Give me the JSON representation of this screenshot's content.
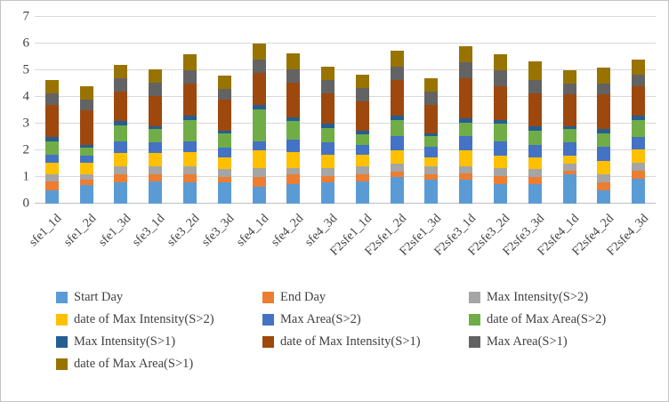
{
  "chart_data": {
    "type": "bar",
    "stacked": true,
    "title": "",
    "xlabel": "",
    "ylabel": "",
    "ylim": [
      0,
      7
    ],
    "yticks": [
      0,
      1,
      2,
      3,
      4,
      5,
      6,
      7
    ],
    "grid": true,
    "legend_position": "bottom",
    "categories": [
      "sfe1_1d",
      "sfe1_2d",
      "sfe1_3d",
      "sfe3_1d",
      "sfe3_2d",
      "sfe3_3d",
      "sfe4_1d",
      "sfe4_2d",
      "sfe4_3d",
      "F2sfe1_1d",
      "F2sfe1_2d",
      "F2sfe1_3d",
      "F2sfe3_1d",
      "F2sfe3_2d",
      "F2sfe3_3d",
      "F2sfe4_1d",
      "F2sfe4_2d",
      "F2sfe4_3d"
    ],
    "series": [
      {
        "name": "Start Day",
        "color": "#5B9BD5",
        "values": [
          0.5,
          0.7,
          0.8,
          0.85,
          0.8,
          0.8,
          0.65,
          0.75,
          0.8,
          0.85,
          1.0,
          0.9,
          0.9,
          0.75,
          0.75,
          1.1,
          0.5,
          0.95
        ]
      },
      {
        "name": "End Day",
        "color": "#ED7D31",
        "values": [
          0.35,
          0.2,
          0.3,
          0.25,
          0.3,
          0.2,
          0.35,
          0.35,
          0.25,
          0.25,
          0.2,
          0.2,
          0.25,
          0.3,
          0.25,
          0.15,
          0.3,
          0.3
        ]
      },
      {
        "name": "Max Intensity(S>2)",
        "color": "#A5A5A5",
        "values": [
          0.25,
          0.2,
          0.3,
          0.3,
          0.3,
          0.3,
          0.35,
          0.25,
          0.3,
          0.3,
          0.3,
          0.3,
          0.25,
          0.3,
          0.3,
          0.25,
          0.3,
          0.3
        ]
      },
      {
        "name": "date of Max Intensity(S>2)",
        "color": "#FFC000",
        "values": [
          0.45,
          0.45,
          0.5,
          0.5,
          0.55,
          0.45,
          0.65,
          0.6,
          0.5,
          0.45,
          0.5,
          0.35,
          0.6,
          0.45,
          0.45,
          0.3,
          0.5,
          0.5
        ]
      },
      {
        "name": "Max Area(S>2)",
        "color": "#4472C4",
        "values": [
          0.3,
          0.25,
          0.45,
          0.4,
          0.4,
          0.35,
          0.35,
          0.45,
          0.45,
          0.35,
          0.55,
          0.4,
          0.55,
          0.55,
          0.45,
          0.5,
          0.55,
          0.45
        ]
      },
      {
        "name": "date of Max Area(S>2)",
        "color": "#70AD47",
        "values": [
          0.5,
          0.3,
          0.6,
          0.5,
          0.8,
          0.55,
          1.2,
          0.7,
          0.55,
          0.4,
          0.6,
          0.4,
          0.5,
          0.65,
          0.55,
          0.5,
          0.5,
          0.65
        ]
      },
      {
        "name": "Max Intensity(S>1)",
        "color": "#255E91",
        "values": [
          0.15,
          0.1,
          0.15,
          0.1,
          0.15,
          0.1,
          0.15,
          0.15,
          0.15,
          0.15,
          0.15,
          0.1,
          0.15,
          0.15,
          0.15,
          0.1,
          0.15,
          0.15
        ]
      },
      {
        "name": "date of Max Intensity(S>1)",
        "color": "#9E480E",
        "values": [
          1.2,
          1.3,
          1.1,
          1.15,
          1.2,
          1.15,
          1.2,
          1.3,
          1.15,
          1.1,
          1.35,
          1.05,
          1.5,
          1.25,
          1.25,
          1.2,
          1.3,
          1.1
        ]
      },
      {
        "name": "Max Area(S>1)",
        "color": "#636363",
        "values": [
          0.45,
          0.4,
          0.5,
          0.5,
          0.5,
          0.4,
          0.5,
          0.5,
          0.5,
          0.5,
          0.5,
          0.5,
          0.6,
          0.6,
          0.5,
          0.4,
          0.4,
          0.45
        ]
      },
      {
        "name": "date of Max Area(S>1)",
        "color": "#997300",
        "values": [
          0.5,
          0.5,
          0.5,
          0.5,
          0.6,
          0.5,
          0.6,
          0.6,
          0.5,
          0.5,
          0.6,
          0.5,
          0.6,
          0.6,
          0.7,
          0.5,
          0.6,
          0.55
        ]
      }
    ]
  }
}
